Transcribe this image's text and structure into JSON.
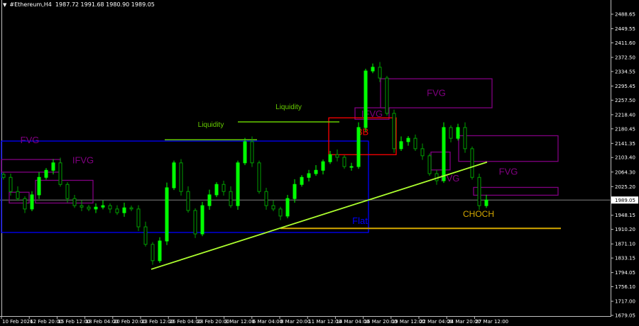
{
  "header": {
    "symbol": "#Ethereum,H4",
    "ohlc": "1987.72 1991.68 1980.90 1989.05"
  },
  "colors": {
    "background": "#000000",
    "bull": "#00ff00",
    "bear": "#00a000",
    "grid_axis": "#c0c0c0",
    "flat": "#0000ff",
    "fvg": "#800080",
    "bb": "#ff0000",
    "liquidity": "#66cc00",
    "trendline": "#adff2f",
    "choch": "#d4a800",
    "bid_line": "#808080"
  },
  "chart_data": {
    "type": "candlestick",
    "current_price": "1989.05",
    "ylim": [
      1679.05,
      2488.65
    ],
    "y_ticks": [
      "2488.65",
      "2449.55",
      "2411.60",
      "2372.50",
      "2334.55",
      "2295.45",
      "2257.50",
      "2218.40",
      "2180.45",
      "2141.35",
      "2103.40",
      "2064.30",
      "2025.20",
      "1948.15",
      "1910.20",
      "1871.10",
      "1833.15",
      "1794.05",
      "1756.10",
      "1717.00",
      "1679.05"
    ],
    "x_ticks": [
      "10 Feb 2026",
      "12 Feb 20:00",
      "15 Feb 12:00",
      "18 Feb 04:00",
      "20 Feb 20:00",
      "23 Feb 12:00",
      "26 Feb 04:00",
      "28 Feb 20:00",
      "3 Mar 12:00",
      "6 Mar 04:00",
      "8 Mar 20:00",
      "11 Mar 12:00",
      "14 Mar 04:00",
      "16 Mar 20:00",
      "19 Mar 12:00",
      "22 Mar 04:00",
      "24 Mar 20:00",
      "27 Mar 12:00"
    ],
    "closes": [
      2050,
      2012,
      1993,
      1965,
      2003,
      2050,
      2069,
      2089,
      2031,
      1993,
      1974,
      1970,
      1965,
      1970,
      1974,
      1965,
      1955,
      1968,
      1965,
      1917,
      1870,
      1826,
      1879,
      2022,
      2089,
      2012,
      1961,
      1898,
      1974,
      2003,
      2031,
      2012,
      1974,
      2089,
      2146,
      2089,
      2012,
      1974,
      1965,
      1946,
      1993,
      2031,
      2050,
      2060,
      2069,
      2092,
      2111,
      2104,
      2079,
      2079,
      2184,
      2336,
      2346,
      2317,
      2222,
      2127,
      2146,
      2155,
      2127,
      2108,
      2060,
      2041,
      2184,
      2155,
      2184,
      2127,
      2050,
      1974,
      1989.05
    ],
    "annotations": {
      "flat": {
        "label": "Flat",
        "bar_from": 0,
        "bar_to": 51.7,
        "price_top": 2147.6,
        "price_bottom": 1901.9
      },
      "fvg_zones": [
        {
          "label": "FVG",
          "bar_from": 53.4,
          "bar_to": 69.1,
          "price_top": 2315,
          "price_bottom": 2237
        },
        {
          "label": "FVG",
          "bar_from": 64.4,
          "bar_to": 78.4,
          "price_top": 2162,
          "price_bottom": 2093
        },
        {
          "label": "",
          "bar_from": 66.5,
          "bar_to": 78.4,
          "price_top": 2023,
          "price_bottom": 2002
        },
        {
          "label": "FVG",
          "bar_from": 60.5,
          "bar_to": 63.2,
          "price_top": 2118,
          "price_bottom": 2070
        },
        {
          "label": "",
          "bar_from": 0,
          "bar_to": 8.3,
          "price_top": 2098,
          "price_bottom": 2064
        },
        {
          "label": "",
          "bar_from": 1.1,
          "bar_to": 3.9,
          "price_top": 2010,
          "price_bottom": 1981
        },
        {
          "label": "",
          "bar_from": 4.8,
          "bar_to": 12.9,
          "price_top": 2042,
          "price_bottom": 1981
        }
      ],
      "ifvg_zones": [
        {
          "label": "IFVG",
          "bar_from": 49.8,
          "bar_to": 54.6,
          "price_top": 2237,
          "price_bottom": 2206
        }
      ],
      "labels": [
        {
          "text": "FVG",
          "bar": 4,
          "price": 2151
        },
        {
          "text": "IFVG",
          "bar": 11.5,
          "price": 2097
        }
      ],
      "bb": {
        "label": "BB",
        "bar_from": 46.1,
        "bar_to": 55.6,
        "price_top": 2210,
        "price_bottom": 2111
      },
      "liquidity": [
        {
          "label": "Liquidity",
          "bar_from": 23,
          "bar_to": 36,
          "price": 2151
        },
        {
          "label": "Liquidity",
          "bar_from": 33.3,
          "bar_to": 47.6,
          "price": 2199
        }
      ],
      "trendline": {
        "bar_from": 21.1,
        "price_from": 1803,
        "bar_to": 68.4,
        "price_to": 2091
      },
      "choch": {
        "label": "CHOCH",
        "bar_from": 39.3,
        "bar_to": 78.8,
        "price": 1913
      }
    }
  }
}
